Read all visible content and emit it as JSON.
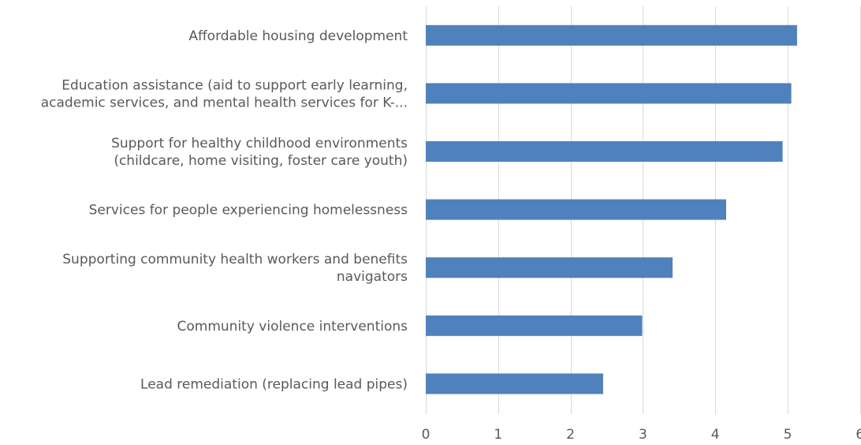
{
  "chart_data": {
    "type": "bar",
    "orientation": "horizontal",
    "categories": [
      [
        "Affordable housing development"
      ],
      [
        "Education assistance (aid to support early learning,",
        "academic services, and mental health services for K-..."
      ],
      [
        "Support for healthy childhood environments",
        "(childcare, home visiting, foster care youth)"
      ],
      [
        "Services for people experiencing homelessness"
      ],
      [
        "Supporting community health workers and benefits",
        "navigators"
      ],
      [
        "Community violence interventions"
      ],
      [
        "Lead remediation (replacing lead pipes)"
      ]
    ],
    "values": [
      5.13,
      5.05,
      4.93,
      4.15,
      3.41,
      2.99,
      2.45
    ],
    "xlim": [
      0,
      6
    ],
    "ticks": [
      "0",
      "1",
      "2",
      "3",
      "4",
      "5",
      "6"
    ],
    "grid": true,
    "title": "",
    "xlabel": "",
    "ylabel": "",
    "colors": {
      "bar": "#4f81bd",
      "grid": "#d9d9d9",
      "text": "#595959"
    }
  }
}
